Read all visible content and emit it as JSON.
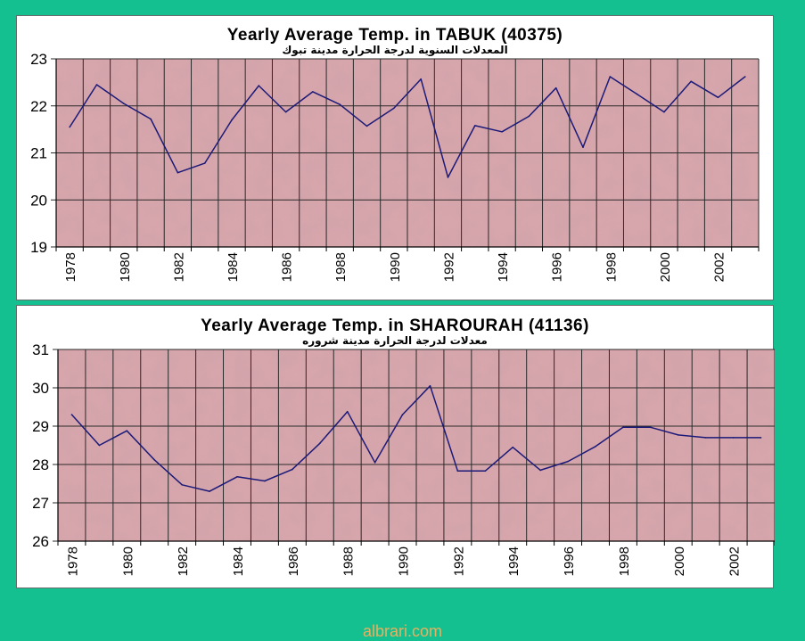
{
  "chart_data": [
    {
      "type": "line",
      "title": "Yearly Average Temp. in TABUK (40375)",
      "subtitle": "المعدلات السنوية لدرجة الحرارة مدينة تبوك",
      "x": [
        1978,
        1979,
        1980,
        1981,
        1982,
        1983,
        1984,
        1985,
        1986,
        1987,
        1988,
        1989,
        1990,
        1991,
        1992,
        1993,
        1994,
        1995,
        1996,
        1997,
        1998,
        1999,
        2000,
        2001,
        2002,
        2003
      ],
      "x_tick_labels": [
        "1978",
        "1980",
        "1982",
        "1984",
        "1986",
        "1988",
        "1990",
        "1992",
        "1994",
        "1996",
        "1998",
        "2000",
        "2002"
      ],
      "series": [
        {
          "values": [
            21.55,
            22.45,
            22.05,
            21.72,
            20.58,
            20.78,
            21.7,
            22.43,
            21.87,
            22.3,
            22.03,
            21.57,
            21.95,
            22.57,
            20.48,
            21.58,
            21.45,
            21.78,
            22.38,
            21.12,
            22.62,
            22.25,
            21.87,
            22.52,
            22.18,
            22.62
          ]
        }
      ],
      "ylim": [
        19,
        23
      ],
      "y_ticks": [
        "19",
        "20",
        "21",
        "22",
        "23"
      ],
      "grid": true,
      "colors": {
        "line": "#1c1a78",
        "plot_bg": "#d7a6ac",
        "grid": "#2a2a2a"
      }
    },
    {
      "type": "line",
      "title": "Yearly Average Temp. in SHAROURAH (41136)",
      "subtitle": "معدلات لدرجة الحرارة مدينة شروره",
      "x": [
        1978,
        1979,
        1980,
        1981,
        1982,
        1983,
        1984,
        1985,
        1986,
        1987,
        1988,
        1989,
        1990,
        1991,
        1992,
        1993,
        1994,
        1995,
        1996,
        1997,
        1998,
        1999,
        2000,
        2001,
        2002,
        2003
      ],
      "x_tick_labels": [
        "1978",
        "1980",
        "1982",
        "1984",
        "1986",
        "1988",
        "1990",
        "1992",
        "1994",
        "1996",
        "1998",
        "2000",
        "2002"
      ],
      "series": [
        {
          "values": [
            29.3,
            28.5,
            28.88,
            28.12,
            27.47,
            27.3,
            27.68,
            27.57,
            27.87,
            28.55,
            29.38,
            28.05,
            29.3,
            30.05,
            27.83,
            27.83,
            28.45,
            27.85,
            28.08,
            28.47,
            28.97,
            28.97,
            28.77,
            28.7,
            28.7,
            28.7
          ]
        }
      ],
      "ylim": [
        26,
        31
      ],
      "y_ticks": [
        "26",
        "27",
        "28",
        "29",
        "30",
        "31"
      ],
      "grid": true,
      "colors": {
        "line": "#1c1a78",
        "plot_bg": "#d7a6ac",
        "grid": "#2a2a2a"
      }
    }
  ],
  "footer": {
    "watermark": "albrari.com"
  }
}
